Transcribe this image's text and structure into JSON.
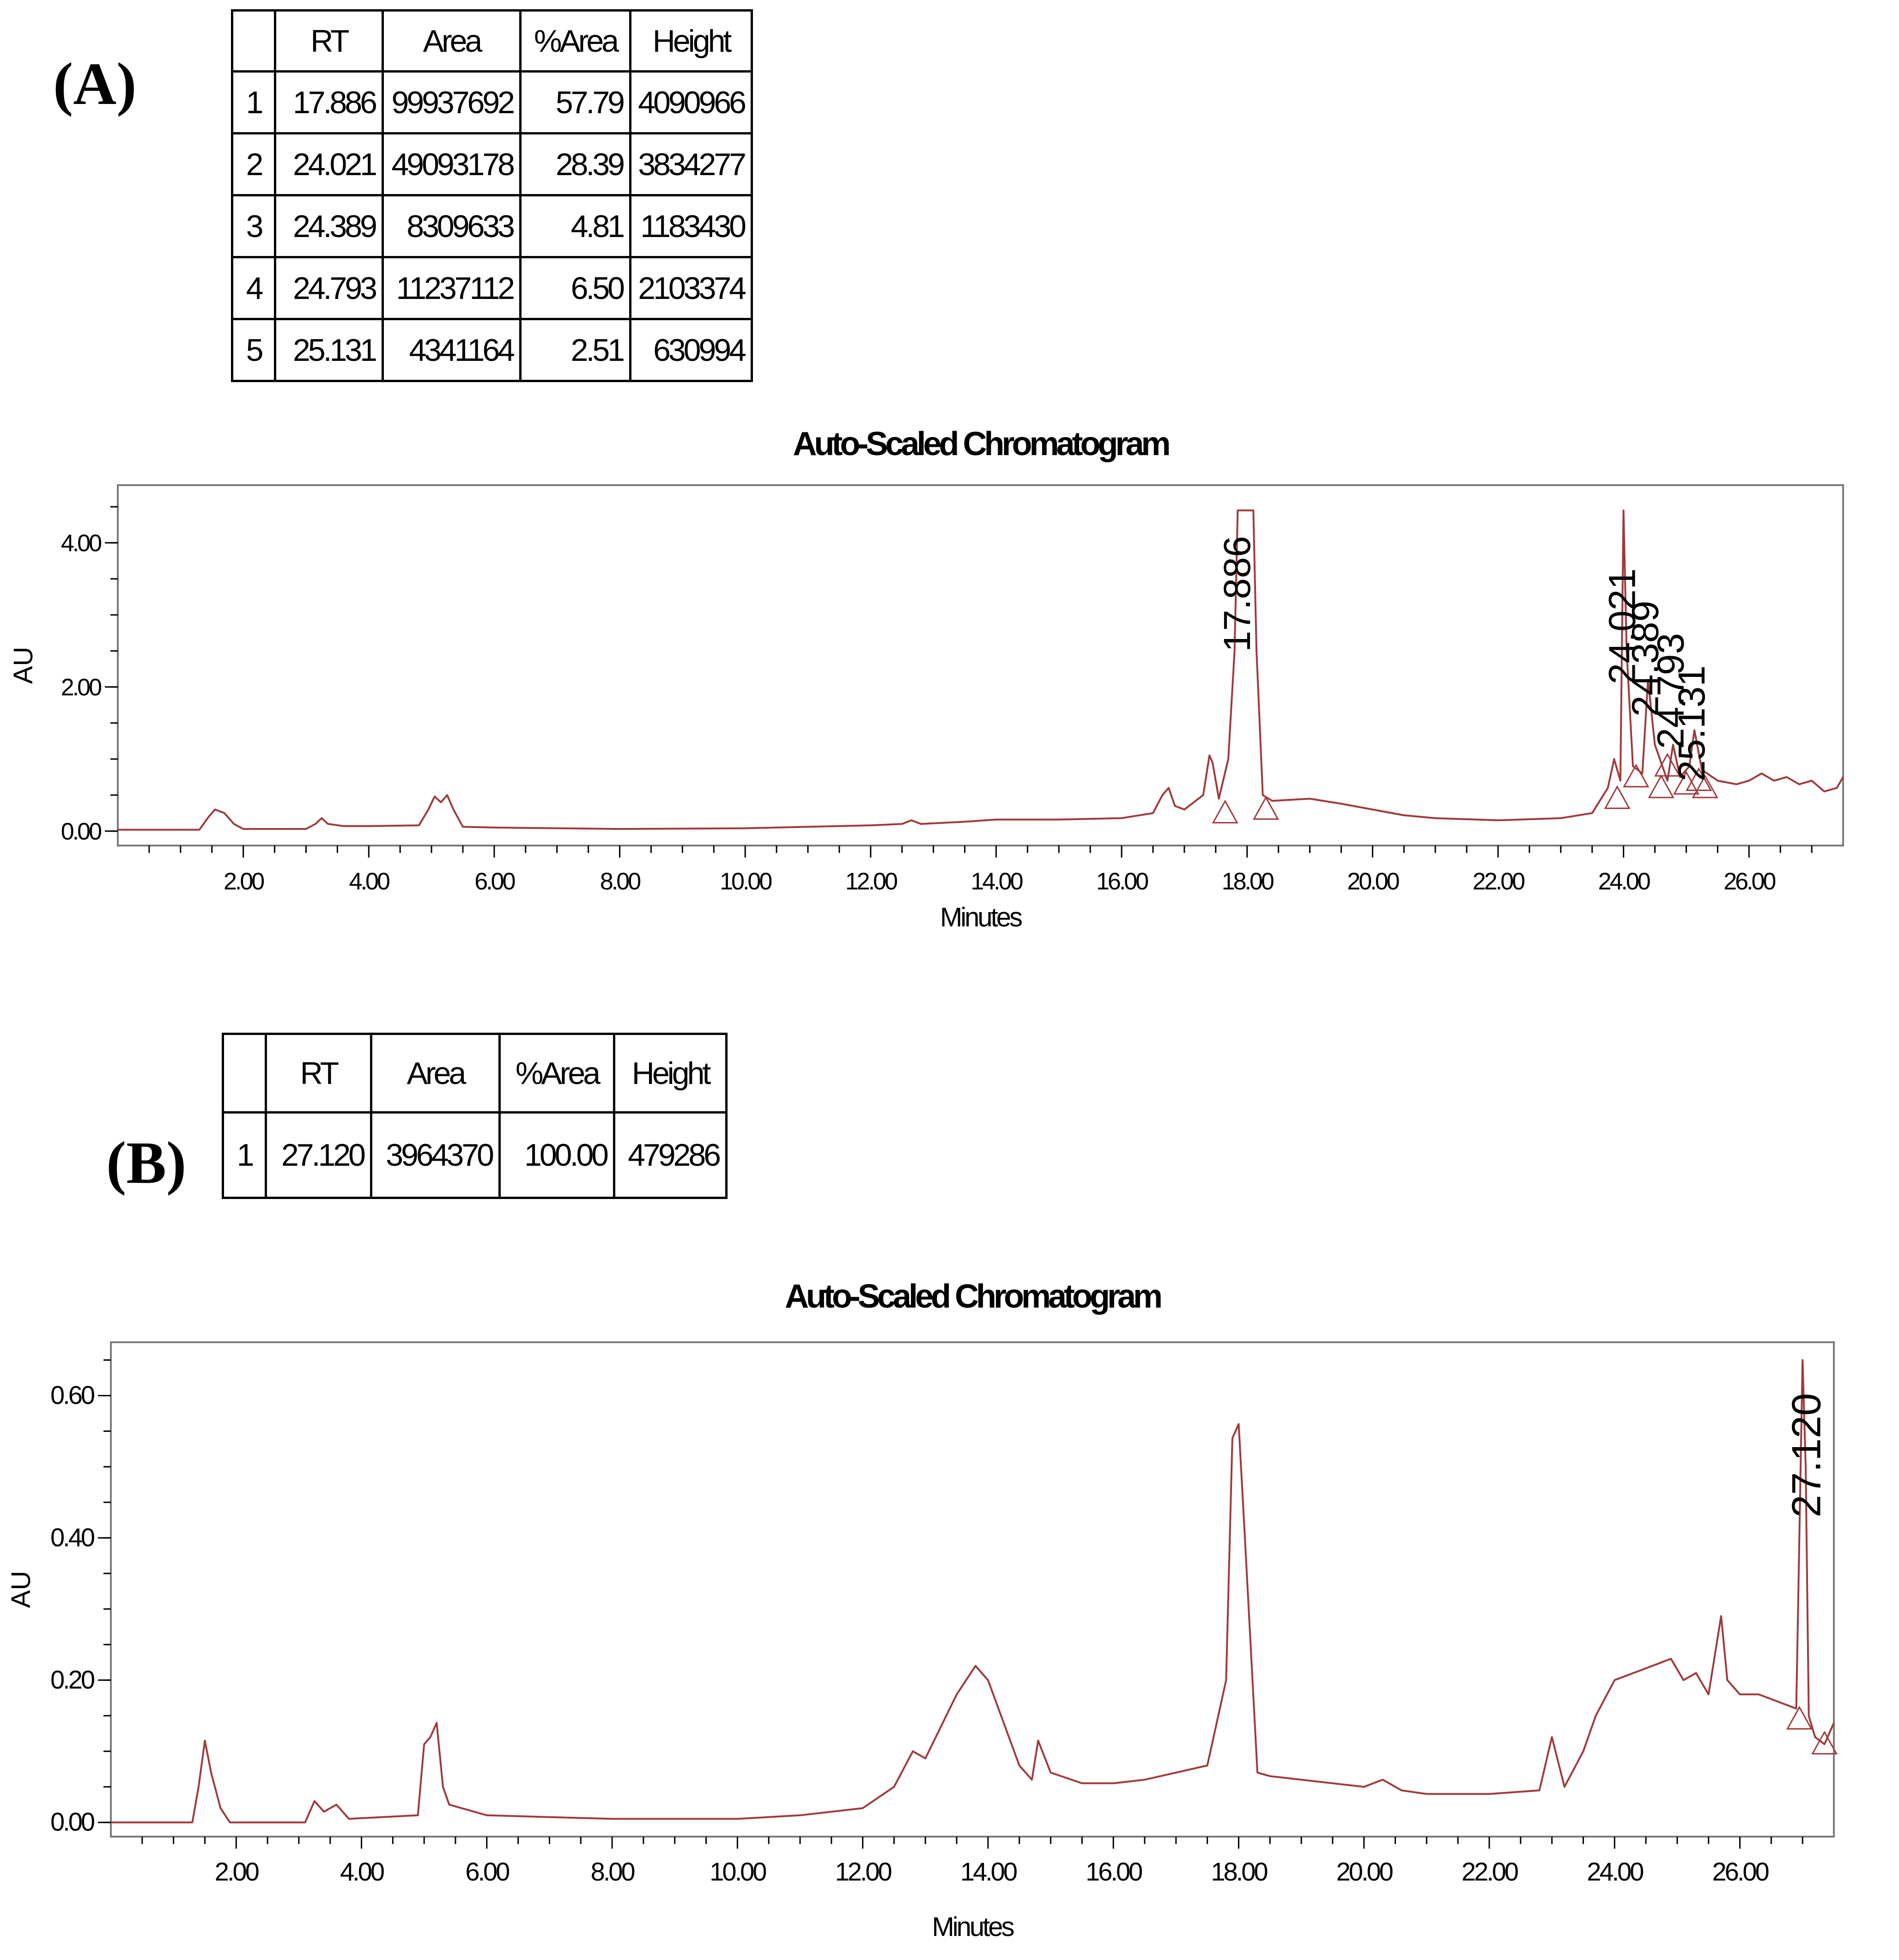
{
  "panel_a": {
    "label": "(A)",
    "table": {
      "columns": [
        "",
        "RT",
        "Area",
        "%Area",
        "Height"
      ],
      "rows": [
        [
          "1",
          "17.886",
          "99937692",
          "57.79",
          "4090966"
        ],
        [
          "2",
          "24.021",
          "49093178",
          "28.39",
          "3834277"
        ],
        [
          "3",
          "24.389",
          "8309633",
          "4.81",
          "1183430"
        ],
        [
          "4",
          "24.793",
          "11237112",
          "6.50",
          "2103374"
        ],
        [
          "5",
          "25.131",
          "4341164",
          "2.51",
          "630994"
        ]
      ]
    }
  },
  "panel_b": {
    "label": "(B)",
    "table": {
      "columns": [
        "",
        "RT",
        "Area",
        "%Area",
        "Height"
      ],
      "rows": [
        [
          "1",
          "27.120",
          "3964370",
          "100.00",
          "479286"
        ]
      ]
    }
  },
  "colors": {
    "trace": "#a0393b",
    "axis": "#000000"
  },
  "chart_data": [
    {
      "type": "line",
      "title": "Auto-Scaled Chromatogram",
      "xlabel": "Minutes",
      "ylabel": "AU",
      "xlim": [
        0.0,
        27.5
      ],
      "ylim": [
        -0.2,
        4.8
      ],
      "xticks": [
        2.0,
        4.0,
        6.0,
        8.0,
        10.0,
        12.0,
        14.0,
        16.0,
        18.0,
        20.0,
        22.0,
        24.0,
        26.0
      ],
      "xtick_labels": [
        "2.00",
        "4.00",
        "6.00",
        "8.00",
        "10.00",
        "12.00",
        "14.00",
        "16.00",
        "18.00",
        "20.00",
        "22.00",
        "24.00",
        "26.00"
      ],
      "yticks": [
        0.0,
        2.0,
        4.0
      ],
      "ytick_labels": [
        "0.00",
        "2.00",
        "4.00"
      ],
      "grid": false,
      "series": [
        {
          "x": [
            0.0,
            1.3,
            1.45,
            1.55,
            1.7,
            1.85,
            2.0,
            3.0,
            3.15,
            3.25,
            3.35,
            3.6,
            4.0,
            4.8,
            4.95,
            5.05,
            5.15,
            5.25,
            5.35,
            5.5,
            6.0,
            8.0,
            10.0,
            11.0,
            12.0,
            12.5,
            12.65,
            12.8,
            13.5,
            14.0,
            15.0,
            16.0,
            16.5,
            16.65,
            16.75,
            16.85,
            17.0,
            17.3,
            17.4,
            17.45,
            17.55,
            17.7,
            17.8,
            17.85,
            17.9,
            18.1,
            18.15,
            18.25,
            18.4,
            19.0,
            19.5,
            20.0,
            20.5,
            21.0,
            22.0,
            23.0,
            23.5,
            23.75,
            23.85,
            23.95,
            24.0,
            24.05,
            24.15,
            24.3,
            24.39,
            24.5,
            24.7,
            24.79,
            24.9,
            25.05,
            25.13,
            25.25,
            25.5,
            25.8,
            26.0,
            26.2,
            26.4,
            26.6,
            26.8,
            27.0,
            27.2,
            27.4,
            27.5
          ],
          "y": [
            0.02,
            0.02,
            0.2,
            0.3,
            0.25,
            0.1,
            0.03,
            0.03,
            0.1,
            0.18,
            0.1,
            0.07,
            0.07,
            0.08,
            0.3,
            0.48,
            0.4,
            0.5,
            0.3,
            0.06,
            0.05,
            0.03,
            0.04,
            0.06,
            0.08,
            0.1,
            0.15,
            0.1,
            0.13,
            0.16,
            0.16,
            0.18,
            0.25,
            0.5,
            0.6,
            0.35,
            0.3,
            0.5,
            1.05,
            0.95,
            0.45,
            1.0,
            2.5,
            4.45,
            4.45,
            4.45,
            2.5,
            0.5,
            0.42,
            0.45,
            0.38,
            0.3,
            0.22,
            0.18,
            0.15,
            0.18,
            0.25,
            0.6,
            1.0,
            0.7,
            4.45,
            2.5,
            0.9,
            0.8,
            2.1,
            1.2,
            0.7,
            1.2,
            0.75,
            0.9,
            1.4,
            0.85,
            0.7,
            0.65,
            0.7,
            0.8,
            0.7,
            0.75,
            0.65,
            0.7,
            0.55,
            0.6,
            0.75
          ]
        }
      ],
      "peak_labels": [
        {
          "x": 17.886,
          "text": "17.886"
        },
        {
          "x": 24.021,
          "text": "24.021"
        },
        {
          "x": 24.389,
          "text": "24.389"
        },
        {
          "x": 24.793,
          "text": "24.793"
        },
        {
          "x": 25.131,
          "text": "25.131"
        }
      ],
      "baseline_markers": [
        {
          "x": 17.65,
          "y": 0.25
        },
        {
          "x": 18.3,
          "y": 0.3
        },
        {
          "x": 23.9,
          "y": 0.45
        },
        {
          "x": 24.2,
          "y": 0.75
        },
        {
          "x": 24.6,
          "y": 0.6
        },
        {
          "x": 24.7,
          "y": 0.9
        },
        {
          "x": 25.0,
          "y": 0.65
        },
        {
          "x": 25.2,
          "y": 0.7
        },
        {
          "x": 25.3,
          "y": 0.6
        }
      ]
    },
    {
      "type": "line",
      "title": "Auto-Scaled Chromatogram",
      "xlabel": "Minutes",
      "ylabel": "AU",
      "xlim": [
        0.0,
        27.5
      ],
      "ylim": [
        -0.02,
        0.675
      ],
      "xticks": [
        2.0,
        4.0,
        6.0,
        8.0,
        10.0,
        12.0,
        14.0,
        16.0,
        18.0,
        20.0,
        22.0,
        24.0,
        26.0
      ],
      "xtick_labels": [
        "2.00",
        "4.00",
        "6.00",
        "8.00",
        "10.00",
        "12.00",
        "14.00",
        "16.00",
        "18.00",
        "20.00",
        "22.00",
        "24.00",
        "26.00"
      ],
      "yticks": [
        0.0,
        0.2,
        0.4,
        0.6
      ],
      "ytick_labels": [
        "0.00",
        "0.20",
        "0.40",
        "0.60"
      ],
      "grid": false,
      "series": [
        {
          "x": [
            0.0,
            1.3,
            1.4,
            1.5,
            1.6,
            1.75,
            1.9,
            3.1,
            3.25,
            3.4,
            3.6,
            3.8,
            4.9,
            5.0,
            5.1,
            5.2,
            5.3,
            5.4,
            5.6,
            6.0,
            8.0,
            10.0,
            11.0,
            12.0,
            12.5,
            12.8,
            13.0,
            13.5,
            13.8,
            14.0,
            14.5,
            14.7,
            14.8,
            15.0,
            15.5,
            16.0,
            16.5,
            17.0,
            17.5,
            17.8,
            17.9,
            18.0,
            18.1,
            18.3,
            18.5,
            19.0,
            20.0,
            20.3,
            20.6,
            21.0,
            22.0,
            22.8,
            23.0,
            23.2,
            23.5,
            23.7,
            24.0,
            24.3,
            24.6,
            24.9,
            25.1,
            25.3,
            25.5,
            25.7,
            25.8,
            26.0,
            26.3,
            26.6,
            26.9,
            27.0,
            27.05,
            27.1,
            27.2,
            27.35,
            27.5
          ],
          "y": [
            0.0,
            0.0,
            0.05,
            0.115,
            0.07,
            0.02,
            0.0,
            0.0,
            0.03,
            0.015,
            0.025,
            0.005,
            0.01,
            0.11,
            0.12,
            0.14,
            0.05,
            0.025,
            0.02,
            0.01,
            0.005,
            0.005,
            0.01,
            0.02,
            0.05,
            0.1,
            0.09,
            0.18,
            0.22,
            0.2,
            0.08,
            0.06,
            0.115,
            0.07,
            0.055,
            0.055,
            0.06,
            0.07,
            0.08,
            0.2,
            0.54,
            0.56,
            0.4,
            0.07,
            0.065,
            0.06,
            0.05,
            0.06,
            0.045,
            0.04,
            0.04,
            0.045,
            0.12,
            0.05,
            0.1,
            0.15,
            0.2,
            0.21,
            0.22,
            0.23,
            0.2,
            0.21,
            0.18,
            0.29,
            0.2,
            0.18,
            0.18,
            0.17,
            0.16,
            0.65,
            0.5,
            0.15,
            0.12,
            0.11,
            0.14
          ]
        }
      ],
      "peak_labels": [
        {
          "x": 27.12,
          "text": "27.120"
        }
      ],
      "baseline_markers": [
        {
          "x": 26.95,
          "y": 0.145
        },
        {
          "x": 27.35,
          "y": 0.11
        }
      ]
    }
  ]
}
